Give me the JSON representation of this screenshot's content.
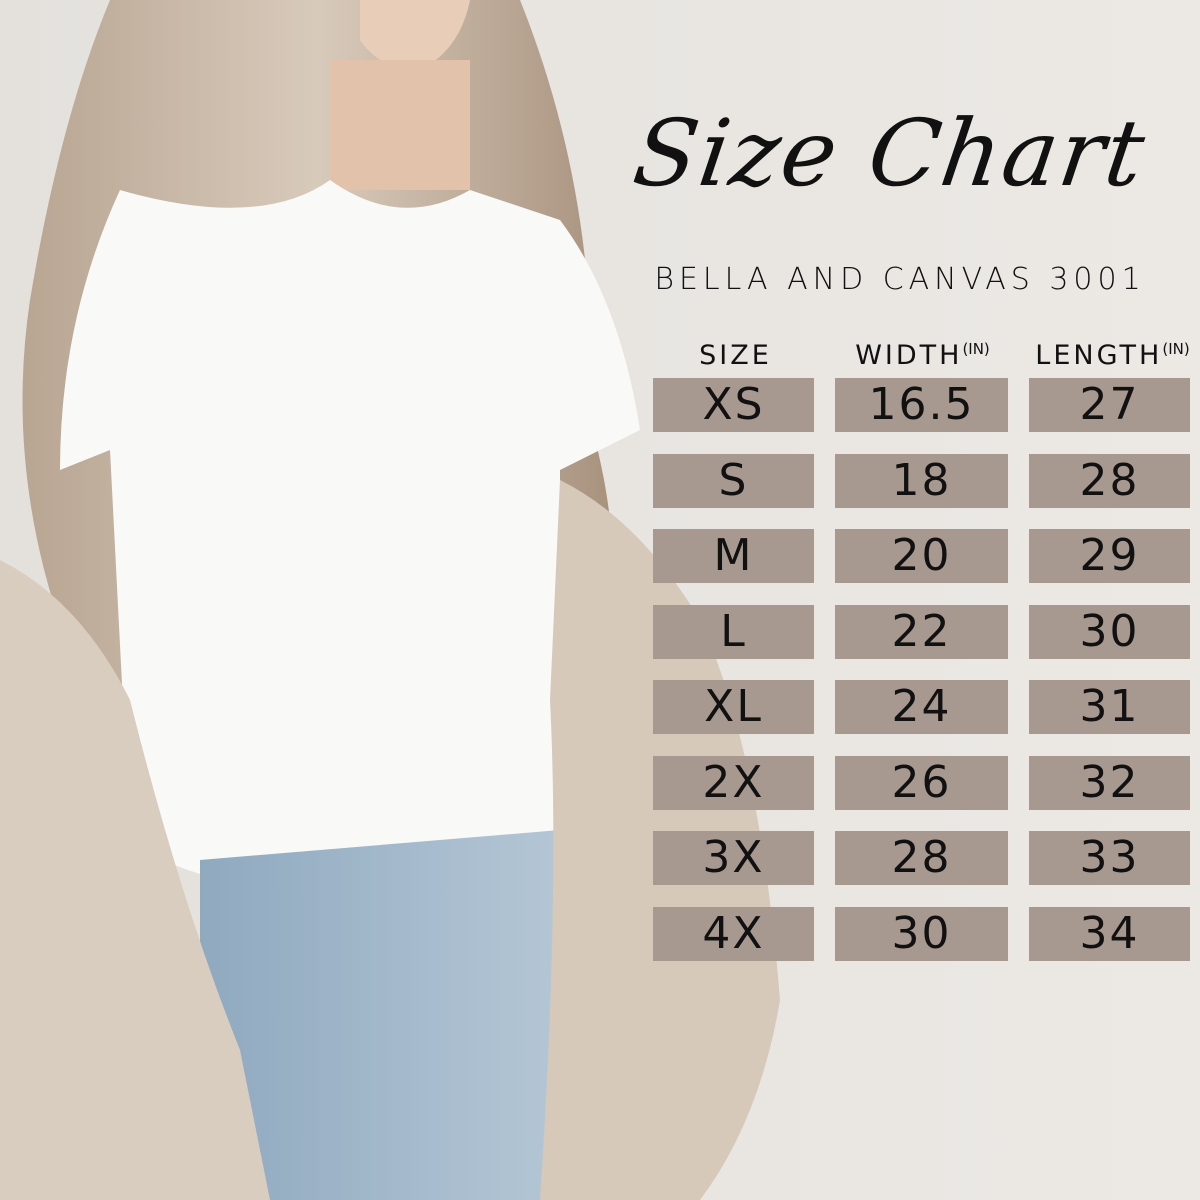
{
  "title": "Size Chart",
  "subtitle": "BELLA AND CANVAS 3001",
  "colors": {
    "background": "#ebe8e4",
    "cell_fill": "#a89990",
    "text": "#111111"
  },
  "table": {
    "headers": [
      {
        "label": "SIZE",
        "unit": ""
      },
      {
        "label": "WIDTH",
        "unit": "(IN)"
      },
      {
        "label": "LENGTH",
        "unit": "(IN)"
      }
    ],
    "rows": [
      [
        "XS",
        "16.5",
        "27"
      ],
      [
        "S",
        "18",
        "28"
      ],
      [
        "M",
        "20",
        "29"
      ],
      [
        "L",
        "22",
        "30"
      ],
      [
        "XL",
        "24",
        "31"
      ],
      [
        "2X",
        "26",
        "32"
      ],
      [
        "3X",
        "28",
        "33"
      ],
      [
        "4X",
        "30",
        "34"
      ]
    ]
  }
}
